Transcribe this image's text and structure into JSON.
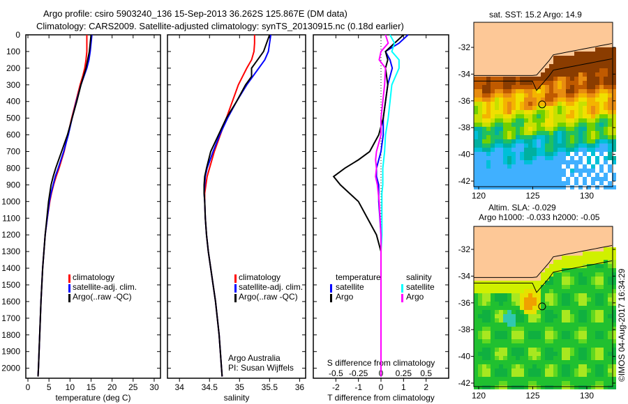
{
  "title_line1": "Argo profile: csiro 5903240_136 15-Sep-2013 36.262S 125.867E (DM data)",
  "title_line2": "Climatology: CARS2009. Satellite-adjusted climatology: synTS_20130915.nc (0.18d earlier)",
  "colors": {
    "climatology": "#ff0000",
    "satellite": "#0000ff",
    "argo": "#000000",
    "sal_satellite": "#00ffff",
    "sal_argo": "#ff00ff",
    "land": "#fdc897"
  },
  "legend_profiles": {
    "climatology": "climatology",
    "satellite": "satellite-adj. clim.",
    "argo": "Argo(..raw -QC)"
  },
  "legend_diff": {
    "temperature": "temperature",
    "salinity": "salinity",
    "satellite": "satellite",
    "argo": "Argo"
  },
  "credit": {
    "line1": "Argo Australia",
    "line2": "PI: Susan Wijffels"
  },
  "map_top": {
    "title": "sat. SST: 15.2  Argo: 14.9"
  },
  "map_bottom": {
    "title1": "Altim. SLA: -0.029",
    "title2": "Argo h1000: -0.033 h2000: -0.05"
  },
  "timestamp": "©IMOS 04-Aug-2017 16:34:29",
  "chart_data": [
    {
      "type": "line",
      "name": "temperature",
      "xlabel": "temperature (deg C)",
      "ylabel": "depth",
      "xlim": [
        -0.5,
        31.5
      ],
      "ylim": [
        2060,
        0
      ],
      "xticks": [
        0,
        5,
        10,
        15,
        20,
        25,
        30
      ],
      "yticks": [
        0,
        100,
        200,
        300,
        400,
        500,
        600,
        700,
        800,
        900,
        1000,
        1100,
        1200,
        1300,
        1400,
        1500,
        1600,
        1700,
        1800,
        1900,
        2000
      ],
      "depth": [
        0,
        50,
        100,
        150,
        200,
        250,
        300,
        400,
        500,
        600,
        700,
        800,
        850,
        900,
        950,
        1000,
        1100,
        1200,
        1300,
        1400,
        1500,
        1600,
        1800,
        2000,
        2050
      ],
      "series": [
        {
          "name": "climatology",
          "values": [
            14,
            14,
            14,
            13.8,
            13.5,
            13,
            12.4,
            11.4,
            10.4,
            9.5,
            8.6,
            7.4,
            6.7,
            6.1,
            5.6,
            5.2,
            4.6,
            4.1,
            3.8,
            3.5,
            3.3,
            3.1,
            2.8,
            2.5,
            2.4
          ]
        },
        {
          "name": "satellite-adj. clim.",
          "values": [
            15.2,
            15.0,
            14.8,
            14.5,
            14.0,
            13.3,
            12.6,
            11.5,
            10.5,
            9.6,
            8.5,
            7.2,
            6.5,
            6.0,
            5.5,
            5.1,
            4.6,
            4.1,
            3.8,
            3.5,
            3.3,
            3.1,
            2.8,
            2.5,
            2.4
          ]
        },
        {
          "name": "Argo",
          "values": [
            15.0,
            14.8,
            14.6,
            14.2,
            13.8,
            13.2,
            12.6,
            11.6,
            10.5,
            9.4,
            8.0,
            6.6,
            6.0,
            5.5,
            5.2,
            4.9,
            4.5,
            4.1,
            3.8,
            3.5,
            3.3,
            3.1,
            2.8,
            2.5,
            2.4
          ]
        }
      ]
    },
    {
      "type": "line",
      "name": "salinity",
      "xlabel": "salinity",
      "ylabel": "depth",
      "xlim": [
        33.8,
        36.1
      ],
      "ylim": [
        2060,
        0
      ],
      "xticks": [
        34,
        34.5,
        35,
        35.5,
        36
      ],
      "depth": [
        0,
        50,
        100,
        150,
        200,
        250,
        300,
        400,
        500,
        600,
        700,
        800,
        850,
        900,
        950,
        1000,
        1100,
        1200,
        1300,
        1400,
        1500,
        1600,
        1800,
        2000,
        2050
      ],
      "series": [
        {
          "name": "climatology",
          "values": [
            35.25,
            35.25,
            35.24,
            35.2,
            35.12,
            35.05,
            34.98,
            34.88,
            34.78,
            34.68,
            34.58,
            34.5,
            34.46,
            34.44,
            34.42,
            34.42,
            34.43,
            34.45,
            34.48,
            34.52,
            34.56,
            34.6,
            34.66,
            34.7,
            34.71
          ]
        },
        {
          "name": "satellite-adj. clim.",
          "values": [
            35.52,
            35.5,
            35.48,
            35.42,
            35.32,
            35.22,
            35.12,
            34.95,
            34.8,
            34.67,
            34.56,
            34.46,
            34.43,
            34.42,
            34.41,
            34.42,
            34.43,
            34.45,
            34.48,
            34.52,
            34.56,
            34.6,
            34.66,
            34.7,
            34.71
          ]
        },
        {
          "name": "Argo",
          "values": [
            35.5,
            35.45,
            35.4,
            35.3,
            35.2,
            35.2,
            35.1,
            34.95,
            34.78,
            34.65,
            34.52,
            34.45,
            34.42,
            34.41,
            34.41,
            34.42,
            34.43,
            34.45,
            34.48,
            34.52,
            34.56,
            34.6,
            34.66,
            34.7,
            34.71
          ]
        }
      ]
    },
    {
      "type": "line",
      "name": "difference",
      "xlabel": "T difference from climatology",
      "x2label": "S difference from climatology",
      "xlim": [
        -3,
        3
      ],
      "ylim": [
        2060,
        0
      ],
      "xticks": [
        -2,
        -1,
        0,
        1,
        2
      ],
      "x2ticks": [
        "-0.5",
        "-0.25",
        "0",
        "0.25",
        "0.5"
      ],
      "depth": [
        0,
        50,
        100,
        150,
        200,
        300,
        400,
        500,
        600,
        700,
        750,
        800,
        850,
        900,
        950,
        1000,
        1100,
        1200,
        1300,
        1400,
        1600,
        1800,
        2000,
        2050
      ],
      "series": [
        {
          "name": "temperature satellite",
          "values": [
            1.2,
            0.8,
            0.2,
            0.4,
            0.5,
            0.3,
            0.2,
            0.1,
            0.1,
            0,
            -0.1,
            -0.2,
            -0.2,
            -0.1,
            -0.1,
            -0.1,
            -0.05,
            0,
            0,
            0,
            0,
            0,
            0,
            0
          ]
        },
        {
          "name": "temperature Argo",
          "values": [
            1.0,
            0.6,
            0.2,
            0.3,
            0.2,
            0.3,
            0.2,
            0.1,
            -0.1,
            -0.5,
            -1.0,
            -1.6,
            -2.1,
            -1.8,
            -1.4,
            -1.0,
            -0.6,
            -0.2,
            0,
            0,
            0,
            0,
            0,
            0
          ]
        },
        {
          "name": "salinity satellite",
          "values": [
            0.1,
            0.15,
            0.12,
            0.2,
            0.2,
            0.12,
            0.1,
            0.08,
            0.05,
            0.04,
            0.03,
            0.02,
            0.02,
            0.02,
            0.01,
            0.01,
            0.01,
            0.01,
            0,
            0,
            0,
            0,
            0,
            0
          ]
        },
        {
          "name": "salinity Argo",
          "values": [
            0.05,
            0.08,
            0,
            -0.02,
            0.05,
            0.04,
            0.02,
            0,
            0,
            -0.05,
            -0.06,
            -0.05,
            -0.06,
            -0.04,
            -0.03,
            -0.02,
            -0.01,
            0,
            0,
            0,
            0,
            0,
            0,
            0
          ]
        }
      ]
    },
    {
      "type": "heatmap",
      "name": "sst-map",
      "lon_ticks": [
        120,
        125,
        130
      ],
      "lat_ticks": [
        -32,
        -34,
        -36,
        -38,
        -40,
        -42
      ],
      "profile_location": {
        "lon": 125.867,
        "lat": -36.262
      }
    },
    {
      "type": "heatmap",
      "name": "sla-map",
      "lon_ticks": [
        120,
        125,
        130
      ],
      "lat_ticks": [
        -32,
        -34,
        -36,
        -38,
        -40,
        -42
      ],
      "profile_location": {
        "lon": 125.867,
        "lat": -36.262
      }
    }
  ]
}
